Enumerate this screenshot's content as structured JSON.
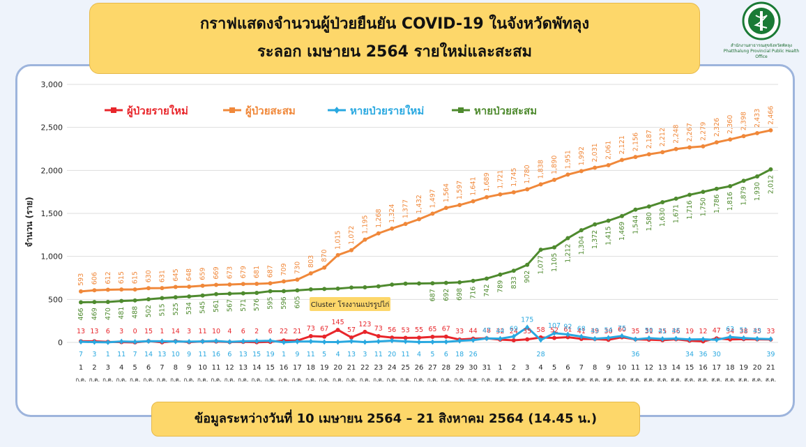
{
  "header": {
    "title_line1": "กราฟแสดงจำนวนผู้ป่วยยืนยัน COVID-19 ในจังหวัดพัทลุง",
    "title_line2": "ระลอก เมษายน 2564 รายใหม่และสะสม"
  },
  "logo": {
    "icon": "health-office-seal-icon",
    "text_th": "สำนักงานสาธารณสุขจังหวัดพัทลุง",
    "text_en": "Phatthalung Provincial Public Health Office"
  },
  "footer": {
    "text": "ข้อมูลระหว่างวันที่ 10 เมษายน 2564 – 21 สิงหาคม 2564 (14.45 น.)"
  },
  "chart_data": {
    "type": "line",
    "ylabel": "จำนวน (ราย)",
    "ylim": [
      0,
      3000
    ],
    "yticks": [
      "0",
      "500",
      "1,000",
      "1,500",
      "2,000",
      "2,500",
      "3,000"
    ],
    "legend_position": "top",
    "annotation": "Cluster โรงงานแปรรูปไก่",
    "x_days": [
      "1",
      "2",
      "3",
      "4",
      "5",
      "6",
      "7",
      "8",
      "9",
      "10",
      "11",
      "12",
      "13",
      "14",
      "15",
      "16",
      "17",
      "18",
      "19",
      "20",
      "21",
      "22",
      "23",
      "24",
      "25",
      "26",
      "27",
      "28",
      "29",
      "30",
      "31",
      "1",
      "2",
      "3",
      "4",
      "5",
      "6",
      "7",
      "8",
      "9",
      "10",
      "11",
      "12",
      "13",
      "14",
      "15",
      "16",
      "17",
      "18",
      "19",
      "20",
      "21"
    ],
    "x_months": [
      "ก.ค.",
      "ก.ค.",
      "ก.ค.",
      "ก.ค.",
      "ก.ค.",
      "ก.ค.",
      "ก.ค.",
      "ก.ค.",
      "ก.ค.",
      "ก.ค.",
      "ก.ค.",
      "ก.ค.",
      "ก.ค.",
      "ก.ค.",
      "ก.ค.",
      "ก.ค.",
      "ก.ค.",
      "ก.ค.",
      "ก.ค.",
      "ก.ค.",
      "ก.ค.",
      "ก.ค.",
      "ก.ค.",
      "ก.ค.",
      "ก.ค.",
      "ก.ค.",
      "ก.ค.",
      "ก.ค.",
      "ก.ค.",
      "ก.ค.",
      "ก.ค.",
      "ส.ค.",
      "ส.ค.",
      "ส.ค.",
      "ส.ค.",
      "ส.ค.",
      "ส.ค.",
      "ส.ค.",
      "ส.ค.",
      "ส.ค.",
      "ส.ค.",
      "ส.ค.",
      "ส.ค.",
      "ส.ค.",
      "ส.ค.",
      "ส.ค.",
      "ส.ค.",
      "ส.ค.",
      "ส.ค.",
      "ส.ค.",
      "ส.ค.",
      "ส.ค."
    ],
    "series": [
      {
        "name": "ผู้ป่วยรายใหม่",
        "color": "#e8262b",
        "labels": [
          "13",
          "13",
          "6",
          "3",
          "0",
          "15",
          "1",
          "14",
          "3",
          "11",
          "10",
          "4",
          "6",
          "2",
          "6",
          "22",
          "21",
          "73",
          "67",
          "145",
          "57",
          "123",
          "73",
          "56",
          "53",
          "55",
          "65",
          "67",
          "33",
          "44",
          "48",
          "32",
          "24",
          "35",
          "58",
          "52",
          "61",
          "41",
          "39",
          "30",
          "60",
          "35",
          "31",
          "25",
          "36",
          "19",
          "12",
          "47",
          "34",
          "38",
          "35",
          "33"
        ],
        "values": [
          13,
          13,
          6,
          3,
          0,
          15,
          1,
          14,
          3,
          11,
          10,
          4,
          6,
          2,
          6,
          22,
          21,
          73,
          67,
          145,
          57,
          123,
          73,
          56,
          53,
          55,
          65,
          67,
          33,
          44,
          48,
          32,
          24,
          35,
          58,
          52,
          61,
          41,
          39,
          30,
          60,
          35,
          31,
          25,
          36,
          19,
          12,
          47,
          34,
          38,
          35,
          33
        ]
      },
      {
        "name": "ผู้ป่วยสะสม",
        "color": "#f0883a",
        "labels": [
          "593",
          "606",
          "612",
          "615",
          "615",
          "630",
          "631",
          "645",
          "648",
          "659",
          "669",
          "673",
          "679",
          "681",
          "687",
          "709",
          "730",
          "803",
          "870",
          "1,015",
          "1,072",
          "1,195",
          "1,268",
          "1,324",
          "1,377",
          "1,432",
          "1,497",
          "1,564",
          "1,597",
          "1,641",
          "1,689",
          "1,721",
          "1,745",
          "1,780",
          "1,838",
          "1,890",
          "1,951",
          "1,992",
          "2,031",
          "2,061",
          "2,121",
          "2,156",
          "2,187",
          "2,212",
          "2,248",
          "2,267",
          "2,279",
          "2,326",
          "2,360",
          "2,398",
          "2,433",
          "2,466"
        ],
        "values": [
          593,
          606,
          612,
          615,
          615,
          630,
          631,
          645,
          648,
          659,
          669,
          673,
          679,
          681,
          687,
          709,
          730,
          803,
          870,
          1015,
          1072,
          1195,
          1268,
          1324,
          1377,
          1432,
          1497,
          1564,
          1597,
          1641,
          1689,
          1721,
          1745,
          1780,
          1838,
          1890,
          1951,
          1992,
          2031,
          2061,
          2121,
          2156,
          2187,
          2212,
          2248,
          2267,
          2279,
          2326,
          2360,
          2398,
          2433,
          2466
        ]
      },
      {
        "name": "หายป่วยรายใหม่",
        "color": "#29a8e0",
        "labels": [
          "7",
          "3",
          "1",
          "11",
          "7",
          "14",
          "13",
          "10",
          "9",
          "11",
          "16",
          "6",
          "13",
          "15",
          "19",
          "1",
          "9",
          "11",
          "5",
          "4",
          "13",
          "3",
          "11",
          "20",
          "11",
          "4",
          "5",
          "6",
          "18",
          "26",
          "47",
          "44",
          "69",
          "175",
          "28",
          "107",
          "92",
          "68",
          "43",
          "54",
          "75",
          "36",
          "50",
          "41",
          "45",
          "34",
          "36",
          "30",
          "63",
          "51",
          "43",
          "39"
        ],
        "values": [
          7,
          3,
          1,
          11,
          7,
          14,
          13,
          10,
          9,
          11,
          16,
          6,
          13,
          15,
          19,
          1,
          9,
          11,
          5,
          4,
          13,
          3,
          11,
          20,
          11,
          4,
          5,
          6,
          18,
          26,
          47,
          44,
          69,
          175,
          28,
          107,
          92,
          68,
          43,
          54,
          75,
          36,
          50,
          41,
          45,
          34,
          36,
          30,
          63,
          51,
          43,
          39
        ]
      },
      {
        "name": "หายป่วยสะสม",
        "color": "#4e8a2e",
        "labels": [
          "466",
          "469",
          "470",
          "481",
          "488",
          "502",
          "515",
          "525",
          "534",
          "545",
          "561",
          "567",
          "571",
          "576",
          "595",
          "596",
          "605",
          "",
          "",
          "",
          "",
          "",
          "",
          "",
          "",
          "",
          "687",
          "692",
          "698",
          "716",
          "742",
          "789",
          "833",
          "902",
          "1,077",
          "1,105",
          "1,212",
          "1,304",
          "1,372",
          "1,415",
          "1,469",
          "1,544",
          "1,580",
          "1,630",
          "1,671",
          "1,716",
          "1,750",
          "1,786",
          "1,816",
          "1,879",
          "1,930",
          "2,012"
        ],
        "values": [
          466,
          469,
          470,
          481,
          488,
          502,
          515,
          525,
          534,
          545,
          561,
          567,
          571,
          576,
          595,
          596,
          605,
          616,
          621,
          625,
          638,
          641,
          652,
          672,
          683,
          685,
          687,
          692,
          698,
          716,
          742,
          789,
          833,
          902,
          1077,
          1105,
          1212,
          1304,
          1372,
          1415,
          1469,
          1544,
          1580,
          1630,
          1671,
          1716,
          1750,
          1786,
          1816,
          1879,
          1930,
          2012
        ]
      }
    ]
  }
}
